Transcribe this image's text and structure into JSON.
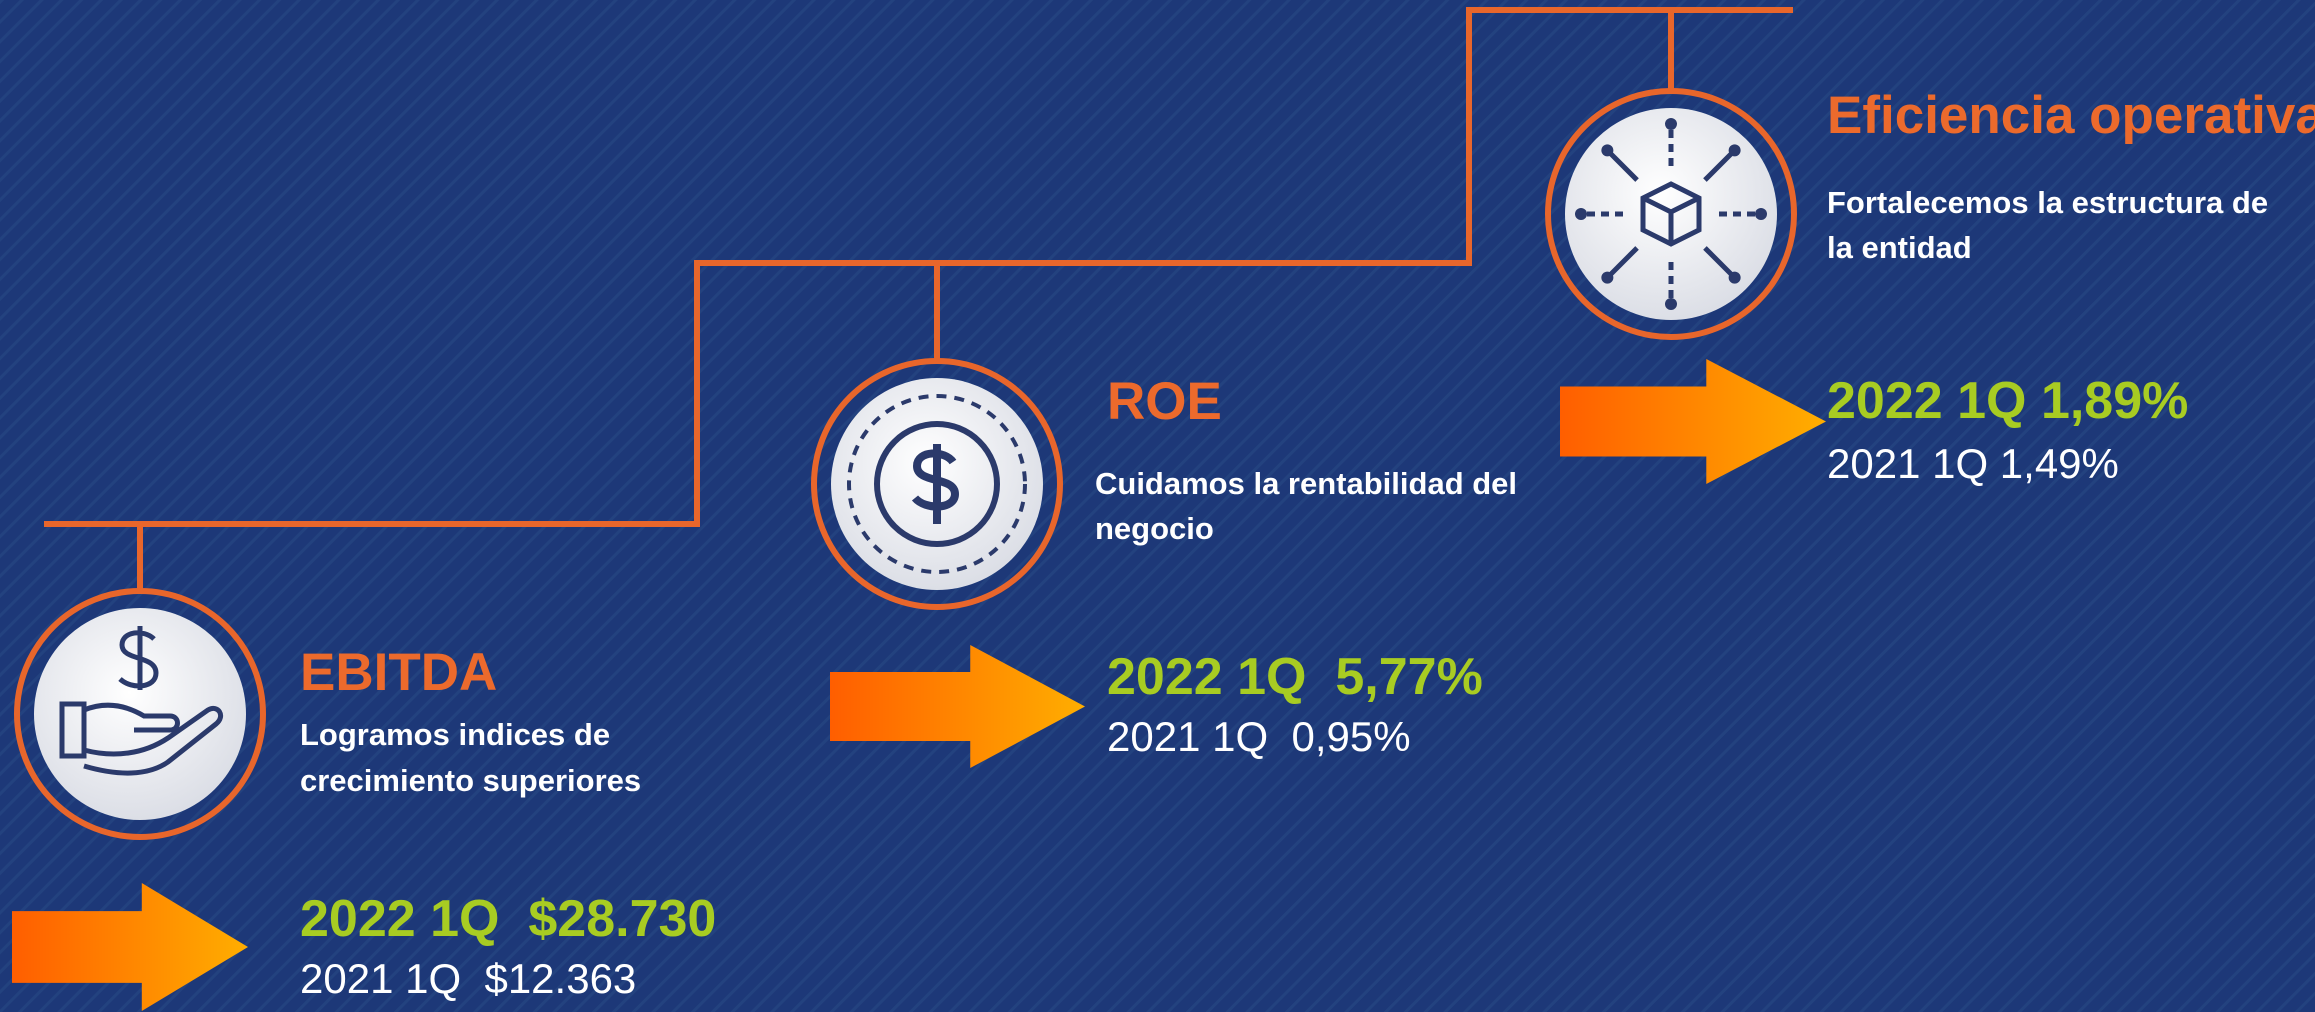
{
  "items": [
    {
      "title": "EBITDA",
      "description": [
        "Logramos indices de",
        "crecimiento superiores"
      ],
      "current": "2022 1Q  $28.730",
      "previous": "2021 1Q  $12.363"
    },
    {
      "title": "ROE",
      "description": [
        "Cuidamos la rentabilidad del",
        "negocio"
      ],
      "current": "2022 1Q  5,77%",
      "previous": "2021 1Q  0,95%"
    },
    {
      "title": "Eficiencia operativa",
      "description": [
        "Fortalecemos la estructura de",
        "la entidad"
      ],
      "current": "2022 1Q 1,89%",
      "previous": "2021 1Q 1,49%"
    }
  ]
}
